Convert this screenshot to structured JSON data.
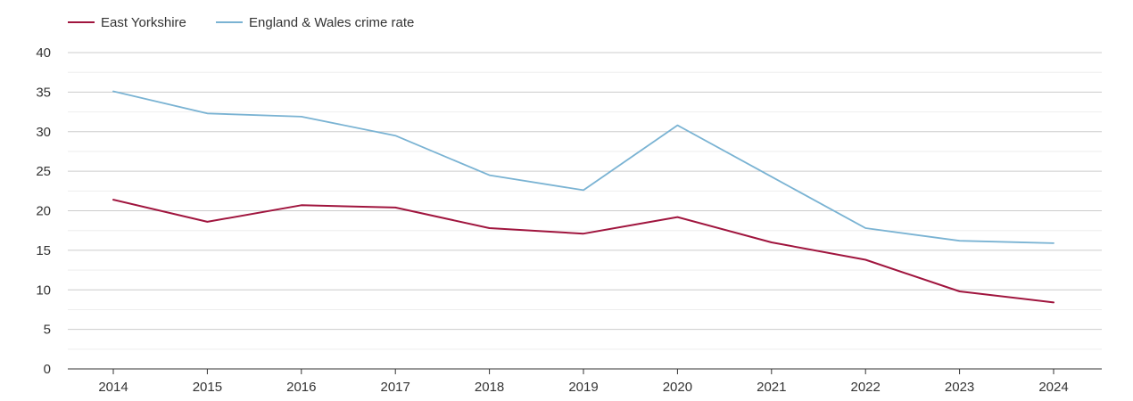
{
  "chart_data": {
    "type": "line",
    "x": [
      "2014",
      "2015",
      "2016",
      "2017",
      "2018",
      "2019",
      "2020",
      "2021",
      "2022",
      "2023",
      "2024"
    ],
    "series": [
      {
        "name": "East Yorkshire",
        "color": "#a0153e",
        "values": [
          21.4,
          18.6,
          20.7,
          20.4,
          17.8,
          17.1,
          19.2,
          16.0,
          13.8,
          9.8,
          8.4
        ]
      },
      {
        "name": "England & Wales crime rate",
        "color": "#7ab3d3",
        "values": [
          35.1,
          32.3,
          31.9,
          29.5,
          24.5,
          22.6,
          30.8,
          24.3,
          17.8,
          16.2,
          15.9
        ]
      }
    ],
    "yticks": [
      "0",
      "5",
      "10",
      "15",
      "20",
      "25",
      "30",
      "35",
      "40"
    ],
    "ylim": [
      0,
      40
    ],
    "grid": true,
    "legend": "top-left",
    "title": "",
    "xlabel": "",
    "ylabel": ""
  }
}
